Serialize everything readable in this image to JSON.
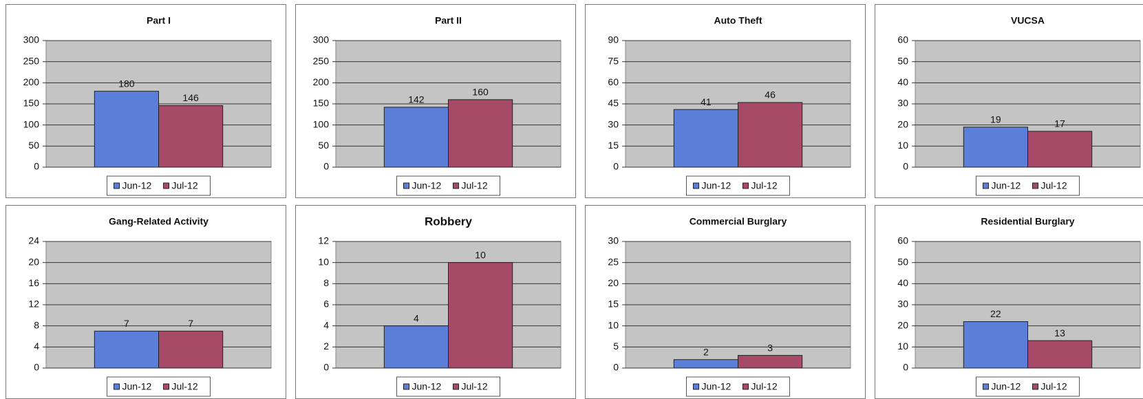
{
  "chart_data": [
    {
      "type": "bar",
      "title": "Part I",
      "categories": [
        null
      ],
      "series": [
        {
          "name": "Jun-12",
          "color": "#5b7fd8",
          "values": [
            180
          ]
        },
        {
          "name": "Jul-12",
          "color": "#a64a68",
          "values": [
            146
          ]
        }
      ],
      "ylim": [
        0,
        300
      ],
      "yticks": [
        0,
        50,
        100,
        150,
        200,
        250,
        300
      ],
      "grid": true
    },
    {
      "type": "bar",
      "title": "Part II",
      "categories": [
        null
      ],
      "series": [
        {
          "name": "Jun-12",
          "color": "#5b7fd8",
          "values": [
            142
          ]
        },
        {
          "name": "Jul-12",
          "color": "#a64a68",
          "values": [
            160
          ]
        }
      ],
      "ylim": [
        0,
        300
      ],
      "yticks": [
        0,
        50,
        100,
        150,
        200,
        250,
        300
      ],
      "grid": true
    },
    {
      "type": "bar",
      "title": "Auto Theft",
      "categories": [
        null
      ],
      "series": [
        {
          "name": "Jun-12",
          "color": "#5b7fd8",
          "values": [
            41
          ]
        },
        {
          "name": "Jul-12",
          "color": "#a64a68",
          "values": [
            46
          ]
        }
      ],
      "ylim": [
        0,
        90
      ],
      "yticks": [
        0,
        15,
        30,
        45,
        60,
        75,
        90
      ],
      "grid": true
    },
    {
      "type": "bar",
      "title": "VUCSA",
      "categories": [
        null
      ],
      "series": [
        {
          "name": "Jun-12",
          "color": "#5b7fd8",
          "values": [
            19
          ]
        },
        {
          "name": "Jul-12",
          "color": "#a64a68",
          "values": [
            17
          ]
        }
      ],
      "ylim": [
        0,
        60
      ],
      "yticks": [
        0,
        10,
        20,
        30,
        40,
        50,
        60
      ],
      "grid": true
    },
    {
      "type": "bar",
      "title": "Gang-Related Activity",
      "categories": [
        null
      ],
      "series": [
        {
          "name": "Jun-12",
          "color": "#5b7fd8",
          "values": [
            7
          ]
        },
        {
          "name": "Jul-12",
          "color": "#a64a68",
          "values": [
            7
          ]
        }
      ],
      "ylim": [
        0,
        24
      ],
      "yticks": [
        0,
        4,
        8,
        12,
        16,
        20,
        24
      ],
      "grid": true
    },
    {
      "type": "bar",
      "title": "Robbery",
      "categories": [
        null
      ],
      "series": [
        {
          "name": "Jun-12",
          "color": "#5b7fd8",
          "values": [
            4
          ]
        },
        {
          "name": "Jul-12",
          "color": "#a64a68",
          "values": [
            10
          ]
        }
      ],
      "ylim": [
        0,
        12
      ],
      "yticks": [
        0,
        2,
        4,
        6,
        8,
        10,
        12
      ],
      "grid": true
    },
    {
      "type": "bar",
      "title": "Commercial Burglary",
      "categories": [
        null
      ],
      "series": [
        {
          "name": "Jun-12",
          "color": "#5b7fd8",
          "values": [
            2
          ]
        },
        {
          "name": "Jul-12",
          "color": "#a64a68",
          "values": [
            3
          ]
        }
      ],
      "ylim": [
        0,
        30
      ],
      "yticks": [
        0,
        5,
        10,
        15,
        20,
        25,
        30
      ],
      "grid": true
    },
    {
      "type": "bar",
      "title": "Residential Burglary",
      "categories": [
        null
      ],
      "series": [
        {
          "name": "Jun-12",
          "color": "#5b7fd8",
          "values": [
            22
          ]
        },
        {
          "name": "Jul-12",
          "color": "#a64a68",
          "values": [
            13
          ]
        }
      ],
      "ylim": [
        0,
        60
      ],
      "yticks": [
        0,
        10,
        20,
        30,
        40,
        50,
        60
      ],
      "grid": true
    }
  ]
}
